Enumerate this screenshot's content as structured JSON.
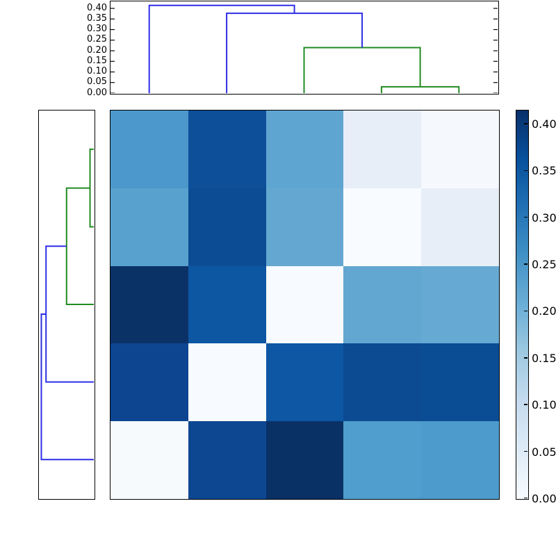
{
  "figure": {
    "background": "#ffffff",
    "frame_color": "#000000",
    "dendrogram_colors": {
      "above_threshold": "#2e2ee6",
      "cluster_green": "#228b22"
    }
  },
  "chart_data": {
    "type": "heatmap",
    "subtype": "clustermap-with-dendrograms",
    "title": "",
    "xlabel": "",
    "ylabel": "",
    "colormap": "Blues",
    "vmin": 0.0,
    "vmax": 0.414,
    "rows": 5,
    "cols": 5,
    "values": [
      [
        0.24,
        0.36,
        0.22,
        0.04,
        0.0
      ],
      [
        0.235,
        0.365,
        0.215,
        0.0,
        0.04
      ],
      [
        0.414,
        0.35,
        0.0,
        0.215,
        0.22
      ],
      [
        0.37,
        0.0,
        0.35,
        0.365,
        0.36
      ],
      [
        0.0,
        0.37,
        0.414,
        0.235,
        0.24
      ]
    ],
    "cell_colors": [
      [
        "#4c97cb",
        "#0d4f99",
        "#5fa5d1",
        "#e7eef7",
        "#f5f9fd"
      ],
      [
        "#58a1cf",
        "#0b4c94",
        "#64a8d2",
        "#f8fbff",
        "#e8eef7"
      ],
      [
        "#0a3267",
        "#0c56a2",
        "#f7fafe",
        "#62a7d2",
        "#66aad3"
      ],
      [
        "#0d4590",
        "#f7fafe",
        "#0d57a4",
        "#0c4a91",
        "#0a4d95"
      ],
      [
        "#f6fafd",
        "#0d4791",
        "#0a3166",
        "#4f9ecd",
        "#4c9bcc"
      ]
    ],
    "top_dendrogram": {
      "orientation": "top",
      "axis_max": 0.433,
      "merge_heights": [
        0.03,
        0.215,
        0.377,
        0.414
      ],
      "ticks": [
        {
          "label": "0.40",
          "value": 0.4
        },
        {
          "label": "0.35",
          "value": 0.35
        },
        {
          "label": "0.30",
          "value": 0.3
        },
        {
          "label": "0.25",
          "value": 0.25
        },
        {
          "label": "0.20",
          "value": 0.2
        },
        {
          "label": "0.15",
          "value": 0.15
        },
        {
          "label": "0.10",
          "value": 0.1
        },
        {
          "label": "0.05",
          "value": 0.05
        },
        {
          "label": "0.00",
          "value": 0.0
        }
      ],
      "leaf_positions": [
        0.1,
        0.3,
        0.5,
        0.7,
        0.9
      ],
      "links": [
        {
          "x": [
            0.7,
            0.9
          ],
          "child_heights": [
            0,
            0
          ],
          "height": 0.03,
          "color_key": "cluster_green"
        },
        {
          "x": [
            0.5,
            0.8
          ],
          "child_heights": [
            0,
            0.03
          ],
          "height": 0.215,
          "color_key": "cluster_green"
        },
        {
          "x": [
            0.3,
            0.65
          ],
          "child_heights": [
            0,
            0.215
          ],
          "height": 0.377,
          "color_key": "above_threshold"
        },
        {
          "x": [
            0.1,
            0.475
          ],
          "child_heights": [
            0,
            0.377
          ],
          "height": 0.414,
          "color_key": "above_threshold"
        }
      ]
    },
    "left_dendrogram": {
      "orientation": "left",
      "axis_max": 0.433,
      "merge_heights": [
        0.03,
        0.215,
        0.377,
        0.414
      ],
      "leaf_positions": [
        0.1,
        0.3,
        0.5,
        0.7,
        0.9
      ],
      "links": [
        {
          "y": [
            0.1,
            0.3
          ],
          "child_heights": [
            0,
            0
          ],
          "height": 0.03,
          "color_key": "cluster_green"
        },
        {
          "y": [
            0.2,
            0.5
          ],
          "child_heights": [
            0.03,
            0
          ],
          "height": 0.215,
          "color_key": "cluster_green"
        },
        {
          "y": [
            0.35,
            0.7
          ],
          "child_heights": [
            0.215,
            0
          ],
          "height": 0.377,
          "color_key": "above_threshold"
        },
        {
          "y": [
            0.525,
            0.9
          ],
          "child_heights": [
            0.377,
            0
          ],
          "height": 0.414,
          "color_key": "above_threshold"
        }
      ]
    },
    "colorbar": {
      "vmin": 0.0,
      "vmax": 0.414,
      "ticks": [
        {
          "label": "0.40",
          "value": 0.4
        },
        {
          "label": "0.35",
          "value": 0.35
        },
        {
          "label": "0.30",
          "value": 0.3
        },
        {
          "label": "0.25",
          "value": 0.25
        },
        {
          "label": "0.20",
          "value": 0.2
        },
        {
          "label": "0.15",
          "value": 0.15
        },
        {
          "label": "0.10",
          "value": 0.1
        },
        {
          "label": "0.05",
          "value": 0.05
        },
        {
          "label": "0.00",
          "value": 0.0
        }
      ],
      "gradient_stops_top_to_bottom": [
        "#08306b",
        "#08519c",
        "#2171b5",
        "#4292c6",
        "#6baed6",
        "#9ecae1",
        "#c6dbef",
        "#deebf7",
        "#f7fbff"
      ]
    }
  }
}
